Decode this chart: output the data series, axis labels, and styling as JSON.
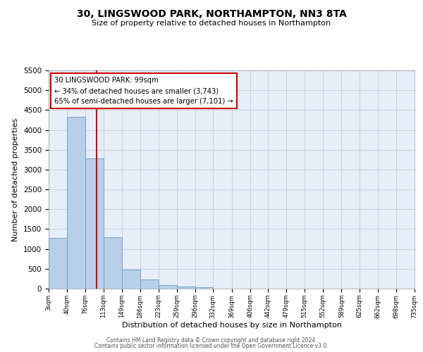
{
  "title": "30, LINGSWOOD PARK, NORTHAMPTON, NN3 8TA",
  "subtitle": "Size of property relative to detached houses in Northampton",
  "xlabel": "Distribution of detached houses by size in Northampton",
  "ylabel": "Number of detached properties",
  "bar_color": "#b8cfe8",
  "bar_edge_color": "#6699cc",
  "background_color": "#e8eef8",
  "grid_color": "#c8d0e0",
  "bin_edges": [
    3,
    40,
    76,
    113,
    149,
    186,
    223,
    259,
    296,
    332,
    369,
    406,
    442,
    479,
    515,
    552,
    589,
    625,
    662,
    698,
    735
  ],
  "bar_heights": [
    1270,
    4330,
    3280,
    1290,
    480,
    230,
    90,
    50,
    30,
    0,
    0,
    0,
    0,
    0,
    0,
    0,
    0,
    0,
    0,
    0
  ],
  "property_line_x": 99,
  "property_line_color": "#cc0000",
  "annotation_line1": "30 LINGSWOOD PARK: 99sqm",
  "annotation_line2": "← 34% of detached houses are smaller (3,743)",
  "annotation_line3": "65% of semi-detached houses are larger (7,101) →",
  "annotation_box_color": "#cc0000",
  "ylim": [
    0,
    5500
  ],
  "yticks": [
    0,
    500,
    1000,
    1500,
    2000,
    2500,
    3000,
    3500,
    4000,
    4500,
    5000,
    5500
  ],
  "footer_line1": "Contains HM Land Registry data © Crown copyright and database right 2024.",
  "footer_line2": "Contains public sector information licensed under the Open Government Licence v3.0."
}
